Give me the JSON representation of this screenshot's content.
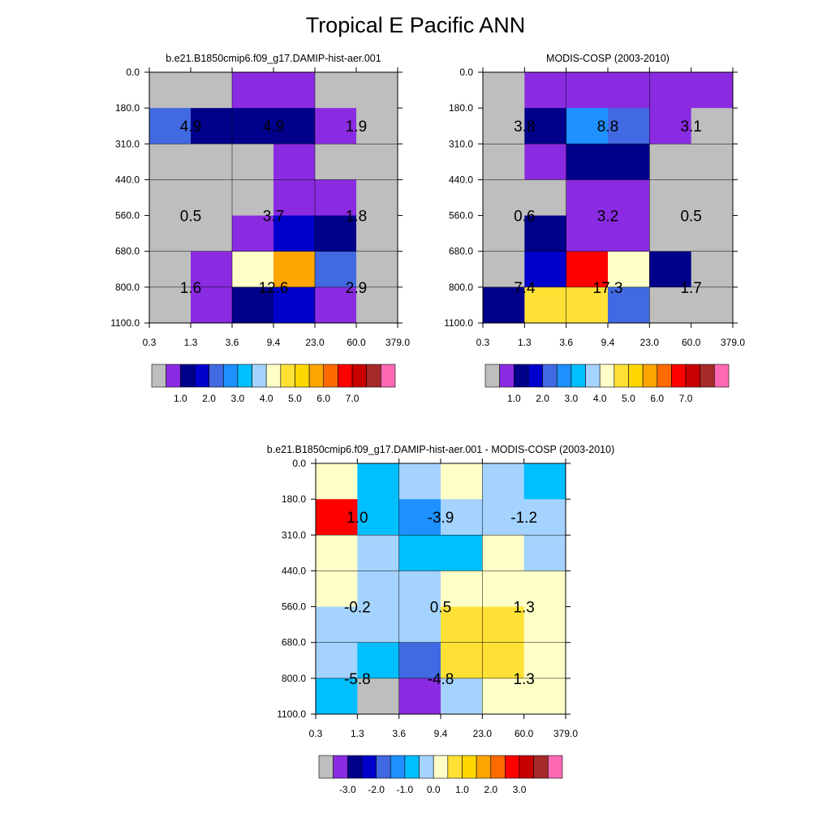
{
  "title": "Tropical E Pacific ANN",
  "palette": {
    "abs": [
      "#bebebe",
      "#8a2be2",
      "#00008b",
      "#0000cd",
      "#4169e1",
      "#1e90ff",
      "#00bfff",
      "#a4d3ff",
      "#ffffc8",
      "#ffe135",
      "#ffd700",
      "#ffa500",
      "#ff6a00",
      "#ff0000",
      "#c80000",
      "#a52a2a",
      "#ff69b4"
    ],
    "diff": [
      "#bebebe",
      "#8a2be2",
      "#00008b",
      "#0000cd",
      "#4169e1",
      "#1e90ff",
      "#00bfff",
      "#a4d3ff",
      "#ffffc8",
      "#ffe135",
      "#ffd700",
      "#ffa500",
      "#ff6a00",
      "#ff0000",
      "#c80000",
      "#a52a2a",
      "#ff69b4"
    ]
  },
  "chart_data": [
    {
      "type": "heatmap",
      "title": "b.e21.B1850cmip6.f09_g17.DAMIP-hist-aer.001",
      "x_ticks": [
        "0.3",
        "1.3",
        "3.6",
        "9.4",
        "23.0",
        "60.0",
        "379.0"
      ],
      "y_ticks": [
        "0.0",
        "180.0",
        "310.0",
        "440.0",
        "560.0",
        "680.0",
        "800.0",
        "1100.0"
      ],
      "cells": [
        [
          0,
          0,
          1,
          1,
          0,
          0
        ],
        [
          4,
          2,
          2,
          2,
          1,
          0
        ],
        [
          0,
          0,
          0,
          1,
          0,
          0
        ],
        [
          0,
          0,
          0,
          1,
          1,
          0
        ],
        [
          0,
          0,
          1,
          3,
          2,
          0
        ],
        [
          0,
          1,
          8,
          11,
          4,
          0
        ],
        [
          0,
          1,
          2,
          3,
          1,
          0
        ]
      ],
      "annotations": [
        {
          "x": 0,
          "y": 0,
          "label": "4.9"
        },
        {
          "x": 1,
          "y": 0,
          "label": "4.9"
        },
        {
          "x": 2,
          "y": 0,
          "label": "1.9"
        },
        {
          "x": 0,
          "y": 1,
          "label": "0.5"
        },
        {
          "x": 1,
          "y": 1,
          "label": "3.7"
        },
        {
          "x": 2,
          "y": 1,
          "label": "1.8"
        },
        {
          "x": 0,
          "y": 2,
          "label": "1.6"
        },
        {
          "x": 1,
          "y": 2,
          "label": "12.6"
        },
        {
          "x": 2,
          "y": 2,
          "label": "2.9"
        }
      ],
      "colorbar": {
        "palette": "abs",
        "labels": [
          "1.0",
          "2.0",
          "3.0",
          "4.0",
          "5.0",
          "6.0",
          "7.0"
        ],
        "label_start_index": 1
      }
    },
    {
      "type": "heatmap",
      "title": "MODIS-COSP (2003-2010)",
      "x_ticks": [
        "0.3",
        "1.3",
        "3.6",
        "9.4",
        "23.0",
        "60.0",
        "379.0"
      ],
      "y_ticks": [
        "0.0",
        "180.0",
        "310.0",
        "440.0",
        "560.0",
        "680.0",
        "800.0",
        "1100.0"
      ],
      "cells": [
        [
          0,
          1,
          1,
          1,
          1,
          1
        ],
        [
          0,
          2,
          5,
          4,
          1,
          0
        ],
        [
          0,
          1,
          2,
          2,
          0,
          0
        ],
        [
          0,
          0,
          1,
          1,
          0,
          0
        ],
        [
          0,
          2,
          1,
          1,
          0,
          0
        ],
        [
          0,
          3,
          13,
          8,
          2,
          0
        ],
        [
          2,
          9,
          9,
          4,
          0,
          0
        ]
      ],
      "annotations": [
        {
          "x": 0,
          "y": 0,
          "label": "3.8"
        },
        {
          "x": 1,
          "y": 0,
          "label": "8.8"
        },
        {
          "x": 2,
          "y": 0,
          "label": "3.1"
        },
        {
          "x": 0,
          "y": 1,
          "label": "0.6"
        },
        {
          "x": 1,
          "y": 1,
          "label": "3.2"
        },
        {
          "x": 2,
          "y": 1,
          "label": "0.5"
        },
        {
          "x": 0,
          "y": 2,
          "label": "7.4"
        },
        {
          "x": 1,
          "y": 2,
          "label": "17.3"
        },
        {
          "x": 2,
          "y": 2,
          "label": "1.7"
        }
      ],
      "colorbar": {
        "palette": "abs",
        "labels": [
          "1.0",
          "2.0",
          "3.0",
          "4.0",
          "5.0",
          "6.0",
          "7.0"
        ],
        "label_start_index": 1
      }
    },
    {
      "type": "heatmap",
      "title": "b.e21.B1850cmip6.f09_g17.DAMIP-hist-aer.001 - MODIS-COSP (2003-2010)",
      "x_ticks": [
        "0.3",
        "1.3",
        "3.6",
        "9.4",
        "23.0",
        "60.0",
        "379.0"
      ],
      "y_ticks": [
        "0.0",
        "180.0",
        "310.0",
        "440.0",
        "560.0",
        "680.0",
        "800.0",
        "1100.0"
      ],
      "cells": [
        [
          8,
          6,
          7,
          8,
          7,
          6
        ],
        [
          13,
          6,
          5,
          7,
          7,
          7
        ],
        [
          8,
          7,
          6,
          6,
          8,
          7
        ],
        [
          8,
          7,
          7,
          8,
          8,
          8
        ],
        [
          7,
          7,
          7,
          9,
          9,
          8
        ],
        [
          7,
          6,
          4,
          9,
          9,
          8
        ],
        [
          6,
          0,
          1,
          7,
          8,
          8
        ]
      ],
      "annotations": [
        {
          "x": 0,
          "y": 0,
          "label": "1.0"
        },
        {
          "x": 1,
          "y": 0,
          "label": "-3.9"
        },
        {
          "x": 2,
          "y": 0,
          "label": "-1.2"
        },
        {
          "x": 0,
          "y": 1,
          "label": "-0.2"
        },
        {
          "x": 1,
          "y": 1,
          "label": "0.5"
        },
        {
          "x": 2,
          "y": 1,
          "label": "1.3"
        },
        {
          "x": 0,
          "y": 2,
          "label": "-5.8"
        },
        {
          "x": 1,
          "y": 2,
          "label": "-4.8"
        },
        {
          "x": 2,
          "y": 2,
          "label": "1.3"
        }
      ],
      "colorbar": {
        "palette": "diff",
        "labels": [
          "-3.0",
          "-2.0",
          "-1.0",
          "0.0",
          "1.0",
          "2.0",
          "3.0"
        ],
        "label_start_index": 1
      }
    }
  ]
}
